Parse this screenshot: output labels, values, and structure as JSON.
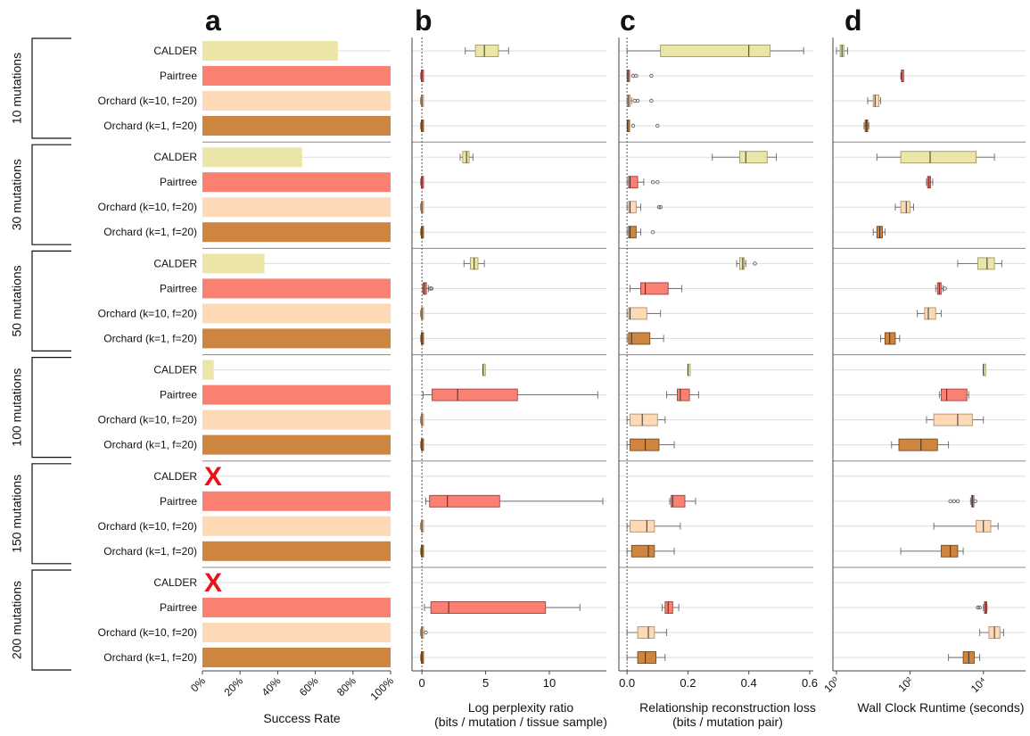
{
  "groups": [
    "10 mutations",
    "30 mutations",
    "50 mutations",
    "100 mutations",
    "150 mutations",
    "200 mutations"
  ],
  "methods": [
    "CALDER",
    "Pairtree",
    "Orchard (k=10, f=20)",
    "Orchard (k=1, f=20)"
  ],
  "method_colors": [
    "#ebe6a8",
    "#fa8072",
    "#fdd9b5",
    "#cd853f"
  ],
  "panel_letters": [
    "a",
    "b",
    "c",
    "d"
  ],
  "calder_failed_mark": "X",
  "chart_data": [
    {
      "panel": "a",
      "type": "bar",
      "xlabel": "Success Rate",
      "xlim": [
        0,
        100
      ],
      "ticks": [
        0,
        20,
        40,
        60,
        80,
        100
      ],
      "tick_labels": [
        "0%",
        "20%",
        "40%",
        "60%",
        "80%",
        "100%"
      ],
      "values": [
        [
          72,
          100,
          100,
          100
        ],
        [
          53,
          100,
          100,
          100
        ],
        [
          33,
          100,
          100,
          100
        ],
        [
          6,
          100,
          100,
          100
        ],
        [
          0,
          100,
          100,
          100
        ],
        [
          0,
          100,
          100,
          100
        ]
      ],
      "failed": [
        [
          false,
          false,
          false,
          false
        ],
        [
          false,
          false,
          false,
          false
        ],
        [
          false,
          false,
          false,
          false
        ],
        [
          false,
          false,
          false,
          false
        ],
        [
          true,
          false,
          false,
          false
        ],
        [
          true,
          false,
          false,
          false
        ]
      ]
    },
    {
      "panel": "b",
      "type": "box",
      "xlabel": "Log perplexity ratio",
      "xlabel2": "(bits / mutation / tissue sample)",
      "xlim": [
        -0.5,
        14.2
      ],
      "refline": 0,
      "ticks": [
        0,
        5,
        10
      ],
      "tick_labels": [
        "0",
        "5",
        "10"
      ],
      "boxes": [
        [
          {
            "min": 3.4,
            "q1": 4.2,
            "med": 4.9,
            "q3": 6.0,
            "max": 6.8
          },
          {
            "min": -0.1,
            "q1": -0.05,
            "med": 0,
            "q3": 0.05,
            "max": 0.1
          },
          {
            "min": -0.1,
            "q1": -0.05,
            "med": 0,
            "q3": 0.05,
            "max": 0.1
          },
          {
            "min": -0.1,
            "q1": -0.05,
            "med": 0,
            "q3": 0.05,
            "max": 0.1
          }
        ],
        [
          {
            "min": 3.0,
            "q1": 3.2,
            "med": 3.5,
            "q3": 3.7,
            "max": 4.0
          },
          {
            "min": -0.1,
            "q1": -0.05,
            "med": 0,
            "q3": 0.05,
            "max": 0.1
          },
          {
            "min": -0.1,
            "q1": -0.05,
            "med": 0,
            "q3": 0.05,
            "max": 0.1
          },
          {
            "min": -0.1,
            "q1": -0.05,
            "med": 0,
            "q3": 0.05,
            "max": 0.1
          }
        ],
        [
          {
            "min": 3.3,
            "q1": 3.8,
            "med": 4.1,
            "q3": 4.4,
            "max": 4.9
          },
          {
            "min": 0.05,
            "q1": 0.1,
            "med": 0.2,
            "q3": 0.35,
            "max": 0.5,
            "outliers": [
              0.65,
              0.75
            ]
          },
          {
            "min": -0.1,
            "q1": -0.05,
            "med": 0,
            "q3": 0.05,
            "max": 0.1
          },
          {
            "min": -0.1,
            "q1": -0.05,
            "med": 0,
            "q3": 0.05,
            "max": 0.1
          }
        ],
        [
          {
            "min": 4.8,
            "q1": 4.8,
            "med": 4.8,
            "q3": 4.8,
            "max": 4.8
          },
          {
            "min": 0.1,
            "q1": 0.8,
            "med": 2.8,
            "q3": 7.5,
            "max": 13.8
          },
          {
            "min": -0.1,
            "q1": -0.05,
            "med": 0,
            "q3": 0.05,
            "max": 0.1
          },
          {
            "min": -0.1,
            "q1": -0.05,
            "med": 0,
            "q3": 0.05,
            "max": 0.1
          }
        ],
        [
          null,
          {
            "min": 0.3,
            "q1": 0.6,
            "med": 2.0,
            "q3": 6.1,
            "max": 14.2
          },
          {
            "min": -0.1,
            "q1": -0.05,
            "med": 0,
            "q3": 0.05,
            "max": 0.1
          },
          {
            "min": -0.1,
            "q1": -0.05,
            "med": 0,
            "q3": 0.05,
            "max": 0.1
          }
        ],
        [
          null,
          {
            "min": 0.2,
            "q1": 0.7,
            "med": 2.1,
            "q3": 9.7,
            "max": 12.4
          },
          {
            "min": -0.1,
            "q1": -0.05,
            "med": 0,
            "q3": 0.05,
            "max": 0.1,
            "outliers": [
              0.3
            ]
          },
          {
            "min": -0.1,
            "q1": -0.05,
            "med": 0,
            "q3": 0.05,
            "max": 0.1
          }
        ]
      ]
    },
    {
      "panel": "c",
      "type": "box",
      "xlabel": "Relationship reconstruction loss",
      "xlabel2": "(bits / mutation pair)",
      "xlim": [
        -0.015,
        0.6
      ],
      "refline": 0,
      "ticks": [
        0,
        0.2,
        0.4,
        0.6
      ],
      "tick_labels": [
        "0.0",
        "0.2",
        "0.4",
        "0.6"
      ],
      "boxes": [
        [
          {
            "min": 0.0,
            "q1": 0.11,
            "med": 0.4,
            "q3": 0.47,
            "max": 0.58
          },
          {
            "min": 0.0,
            "q1": 0.001,
            "med": 0.003,
            "q3": 0.005,
            "max": 0.008,
            "outliers": [
              0.02,
              0.03,
              0.08
            ]
          },
          {
            "min": 0.0,
            "q1": 0.002,
            "med": 0.005,
            "q3": 0.01,
            "max": 0.015,
            "outliers": [
              0.025,
              0.035,
              0.08
            ]
          },
          {
            "min": 0.0,
            "q1": 0.001,
            "med": 0.002,
            "q3": 0.004,
            "max": 0.006,
            "outliers": [
              0.02,
              0.1
            ]
          }
        ],
        [
          {
            "min": 0.28,
            "q1": 0.37,
            "med": 0.39,
            "q3": 0.46,
            "max": 0.49
          },
          {
            "min": 0.0,
            "q1": 0.005,
            "med": 0.01,
            "q3": 0.035,
            "max": 0.055,
            "outliers": [
              0.085,
              0.1
            ]
          },
          {
            "min": 0.0,
            "q1": 0.005,
            "med": 0.01,
            "q3": 0.03,
            "max": 0.045,
            "outliers": [
              0.105,
              0.11
            ]
          },
          {
            "min": 0.0,
            "q1": 0.005,
            "med": 0.01,
            "q3": 0.03,
            "max": 0.045,
            "outliers": [
              0.085
            ]
          }
        ],
        [
          {
            "min": 0.36,
            "q1": 0.37,
            "med": 0.38,
            "q3": 0.385,
            "max": 0.39,
            "outliers": [
              0.42
            ]
          },
          {
            "min": 0.01,
            "q1": 0.045,
            "med": 0.06,
            "q3": 0.135,
            "max": 0.18
          },
          {
            "min": 0.0,
            "q1": 0.005,
            "med": 0.01,
            "q3": 0.065,
            "max": 0.11
          },
          {
            "min": 0.0,
            "q1": 0.005,
            "med": 0.015,
            "q3": 0.075,
            "max": 0.12
          }
        ],
        [
          {
            "min": 0.2,
            "q1": 0.2,
            "med": 0.2,
            "q3": 0.2,
            "max": 0.2
          },
          {
            "min": 0.13,
            "q1": 0.165,
            "med": 0.175,
            "q3": 0.205,
            "max": 0.235
          },
          {
            "min": 0.0,
            "q1": 0.01,
            "med": 0.05,
            "q3": 0.1,
            "max": 0.125
          },
          {
            "min": 0.0,
            "q1": 0.01,
            "med": 0.06,
            "q3": 0.105,
            "max": 0.155
          }
        ],
        [
          null,
          {
            "min": 0.14,
            "q1": 0.145,
            "med": 0.15,
            "q3": 0.19,
            "max": 0.225
          },
          {
            "min": 0.0,
            "q1": 0.01,
            "med": 0.065,
            "q3": 0.09,
            "max": 0.175
          },
          {
            "min": 0.0,
            "q1": 0.015,
            "med": 0.07,
            "q3": 0.09,
            "max": 0.155
          }
        ],
        [
          null,
          {
            "min": 0.115,
            "q1": 0.125,
            "med": 0.135,
            "q3": 0.15,
            "max": 0.17
          },
          {
            "min": 0.0,
            "q1": 0.035,
            "med": 0.07,
            "q3": 0.09,
            "max": 0.13
          },
          {
            "min": 0.0,
            "q1": 0.035,
            "med": 0.06,
            "q3": 0.095,
            "max": 0.125
          }
        ]
      ]
    },
    {
      "panel": "d",
      "type": "box",
      "xlabel": "Wall Clock Runtime (seconds)",
      "xscale": "log",
      "xlim": [
        0,
        5.05
      ],
      "ticks": [
        0,
        2,
        4
      ],
      "tick_labels": [
        "10⁰",
        "10²",
        "10⁴"
      ],
      "boxes": [
        [
          {
            "min": 0.0,
            "q1": 0.1,
            "med": 0.15,
            "q3": 0.2,
            "max": 0.3
          },
          {
            "min": 1.75,
            "q1": 1.77,
            "med": 1.78,
            "q3": 1.8,
            "max": 1.82
          },
          {
            "min": 0.85,
            "q1": 1.0,
            "med": 1.05,
            "q3": 1.15,
            "max": 1.2
          },
          {
            "min": 0.75,
            "q1": 0.78,
            "med": 0.82,
            "q3": 0.85,
            "max": 0.88
          }
        ],
        [
          {
            "min": 1.1,
            "q1": 1.75,
            "med": 2.55,
            "q3": 3.8,
            "max": 4.3
          },
          {
            "min": 2.45,
            "q1": 2.48,
            "med": 2.52,
            "q3": 2.56,
            "max": 2.62
          },
          {
            "min": 1.6,
            "q1": 1.75,
            "med": 1.9,
            "q3": 2.0,
            "max": 2.1
          },
          {
            "min": 1.0,
            "q1": 1.1,
            "med": 1.18,
            "q3": 1.25,
            "max": 1.32
          }
        ],
        [
          {
            "min": 3.3,
            "q1": 3.85,
            "med": 4.1,
            "q3": 4.3,
            "max": 4.5
          },
          {
            "min": 2.7,
            "q1": 2.75,
            "med": 2.8,
            "q3": 2.85,
            "max": 2.9,
            "outliers": [
              2.95
            ]
          },
          {
            "min": 2.2,
            "q1": 2.4,
            "med": 2.5,
            "q3": 2.7,
            "max": 2.85
          },
          {
            "min": 1.2,
            "q1": 1.32,
            "med": 1.45,
            "q3": 1.6,
            "max": 1.72
          }
        ],
        [
          {
            "min": 4.0,
            "q1": 4.0,
            "med": 4.0,
            "q3": 4.0,
            "max": 4.0
          },
          {
            "min": 2.8,
            "q1": 2.85,
            "med": 3.0,
            "q3": 3.55,
            "max": 3.6
          },
          {
            "min": 2.45,
            "q1": 2.65,
            "med": 3.3,
            "q3": 3.7,
            "max": 4.0
          },
          {
            "min": 1.5,
            "q1": 1.7,
            "med": 2.3,
            "q3": 2.75,
            "max": 3.05
          }
        ],
        [
          null,
          {
            "min": 3.65,
            "q1": 3.68,
            "med": 3.7,
            "q3": 3.72,
            "max": 3.74,
            "outliers": [
              3.1,
              3.2,
              3.3,
              3.78
            ]
          },
          {
            "min": 2.65,
            "q1": 3.8,
            "med": 4.0,
            "q3": 4.2,
            "max": 4.4
          },
          {
            "min": 1.75,
            "q1": 2.85,
            "med": 3.1,
            "q3": 3.3,
            "max": 3.45
          }
        ],
        [
          null,
          {
            "min": 4.0,
            "q1": 4.03,
            "med": 4.06,
            "q3": 4.08,
            "max": 4.1,
            "outliers": [
              3.85,
              3.9
            ]
          },
          {
            "min": 3.9,
            "q1": 4.15,
            "med": 4.3,
            "q3": 4.45,
            "max": 4.55
          },
          {
            "min": 3.05,
            "q1": 3.45,
            "med": 3.6,
            "q3": 3.75,
            "max": 3.9
          }
        ]
      ]
    }
  ]
}
